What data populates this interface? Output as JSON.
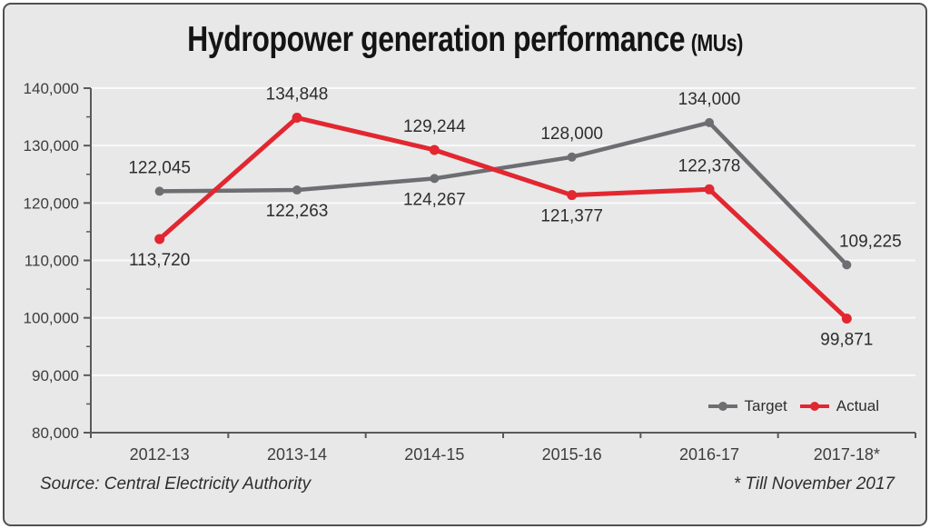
{
  "title": {
    "text": "Hydropower generation performance",
    "unit": "(MUs)"
  },
  "legend": {
    "items": [
      {
        "label": "Target",
        "color": "#6d6e71"
      },
      {
        "label": "Actual",
        "color": "#e22730"
      }
    ]
  },
  "footer": {
    "source": "Source: Central Electricity Authority",
    "note": "* Till November 2017"
  },
  "colors": {
    "background": "#e8e8e9",
    "border": "#4f5052",
    "grid": "#fafafa",
    "axis": "#58595b",
    "tick_label": "#3d3d3f",
    "data_label": "#2d2d2f"
  },
  "chart_data": {
    "type": "line",
    "categories": [
      "2012-13",
      "2013-14",
      "2014-15",
      "2015-16",
      "2016-17",
      "2017-18*"
    ],
    "series": [
      {
        "name": "Target",
        "color": "#6d6e71",
        "values": [
          122045,
          122263,
          124267,
          128000,
          134000,
          109225
        ],
        "labels": [
          "122,045",
          "122,263",
          "124,267",
          "128,000",
          "134,000",
          "109,225"
        ],
        "label_positions": [
          "above",
          "below",
          "below",
          "above",
          "above",
          "above-right"
        ]
      },
      {
        "name": "Actual",
        "color": "#e22730",
        "values": [
          113720,
          134848,
          129244,
          121377,
          122378,
          99871
        ],
        "labels": [
          "113,720",
          "134,848",
          "129,244",
          "121,377",
          "122,378",
          "99,871"
        ],
        "label_positions": [
          "below",
          "above",
          "above",
          "below",
          "above",
          "below"
        ]
      }
    ],
    "title": "Hydropower generation performance (MUs)",
    "xlabel": "",
    "ylabel": "",
    "ylim": [
      80000,
      140000
    ],
    "ytick_step": 10000,
    "ytick_labels": [
      "80,000",
      "90,000",
      "100,000",
      "110,000",
      "120,000",
      "130,000",
      "140,000"
    ],
    "grid": "horizontal white lines at major y ticks",
    "legend_position": "inside bottom-right"
  }
}
